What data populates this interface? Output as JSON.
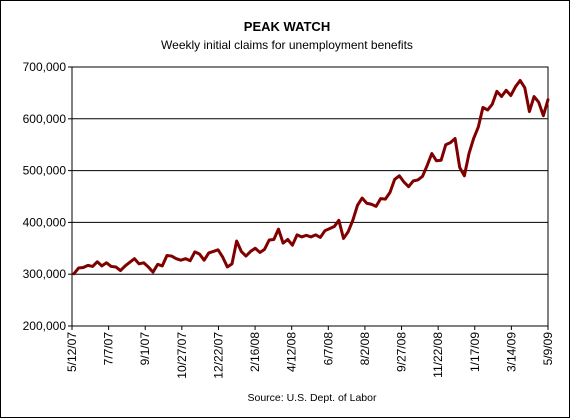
{
  "chart_data": {
    "type": "line",
    "title": "PEAK WATCH",
    "subtitle": "Weekly initial claims for unemployment benefits",
    "source": "Source: U.S. Dept. of Labor",
    "ylim": [
      200000,
      700000
    ],
    "y_ticks": [
      200000,
      300000,
      400000,
      500000,
      600000,
      700000
    ],
    "y_tick_labels": [
      "200,000",
      "300,000",
      "400,000",
      "500,000",
      "600,000",
      "700,000"
    ],
    "grid": "horizontal",
    "x_tick_labels": [
      "5/12/07",
      "7/7/07",
      "9/1/07",
      "10/27/07",
      "12/22/07",
      "2/16/08",
      "4/12/08",
      "6/7/08",
      "8/2/08",
      "9/27/08",
      "11/22/08",
      "1/17/09",
      "3/14/09",
      "5/9/09"
    ],
    "series": [
      {
        "color": "#800000",
        "values": [
          301000,
          312000,
          313000,
          317000,
          315000,
          324000,
          316000,
          322000,
          315000,
          314000,
          307000,
          316000,
          323000,
          330000,
          320000,
          322000,
          314000,
          304000,
          319000,
          316000,
          336000,
          335000,
          330000,
          327000,
          330000,
          326000,
          343000,
          339000,
          327000,
          341000,
          344000,
          347000,
          333000,
          314000,
          320000,
          364000,
          344000,
          335000,
          344000,
          350000,
          342000,
          348000,
          366000,
          367000,
          387000,
          360000,
          367000,
          356000,
          376000,
          372000,
          375000,
          372000,
          376000,
          371000,
          384000,
          388000,
          392000,
          404000,
          369000,
          382000,
          404000,
          433000,
          447000,
          437000,
          435000,
          431000,
          446000,
          445000,
          458000,
          483000,
          490000,
          478000,
          469000,
          480000,
          482000,
          489000,
          510000,
          533000,
          519000,
          520000,
          550000,
          554000,
          562000,
          506000,
          490000,
          533000,
          562000,
          584000,
          622000,
          617000,
          628000,
          653000,
          643000,
          655000,
          645000,
          662000,
          674000,
          660000,
          614000,
          643000,
          632000,
          606000,
          637000
        ]
      }
    ]
  }
}
